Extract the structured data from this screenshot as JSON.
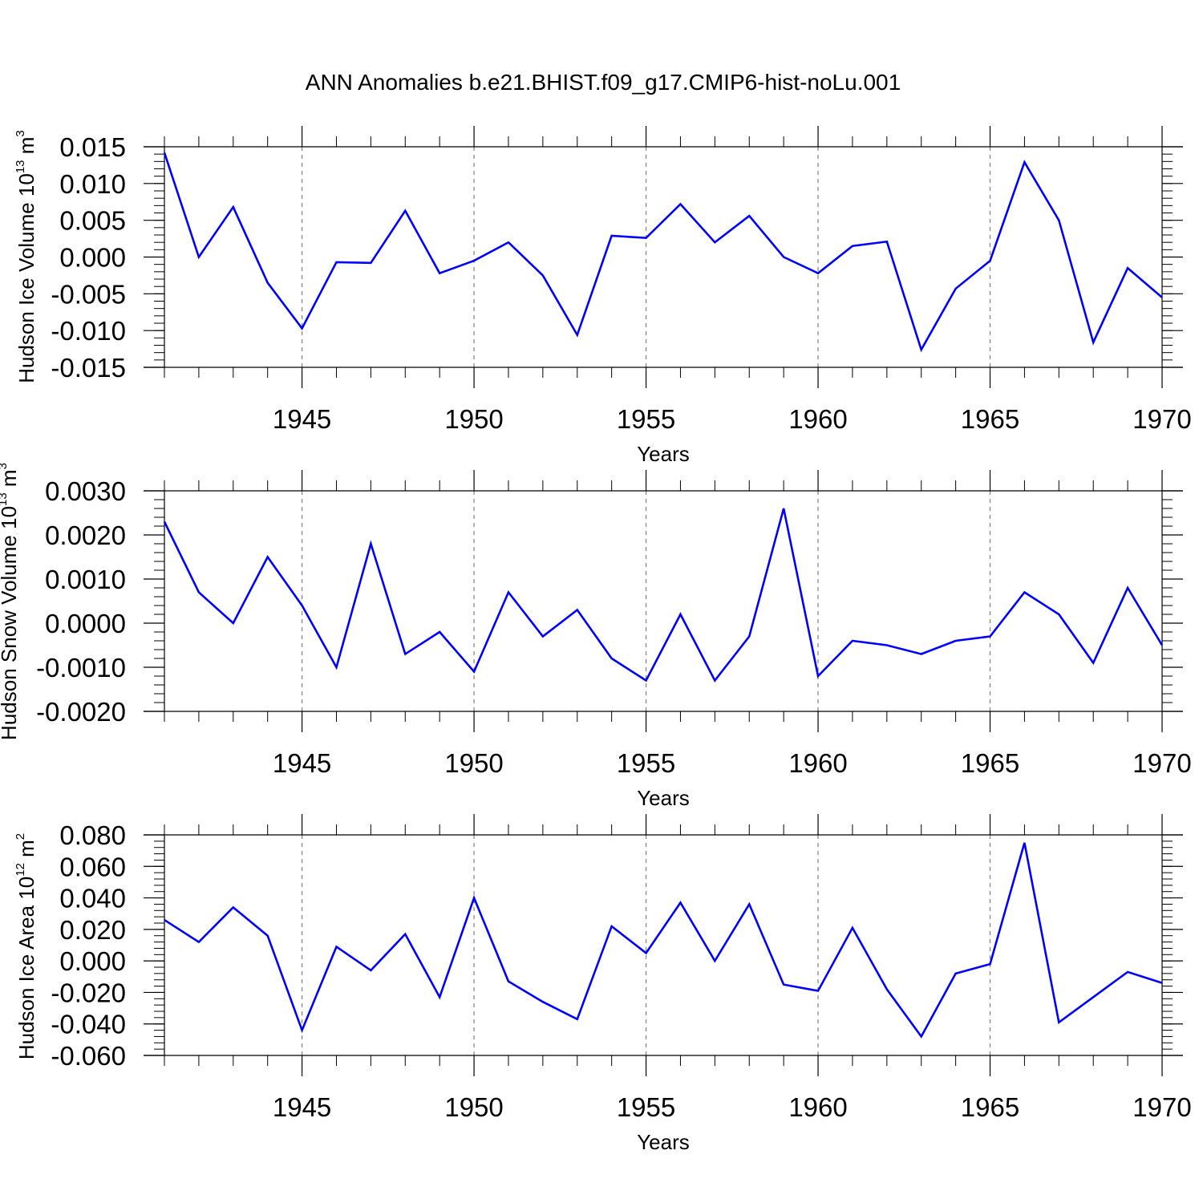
{
  "figure_title": "ANN Anomalies b.e21.BHIST.f09_g17.CMIP6-hist-noLu.001",
  "colors": {
    "series": "#0000ff",
    "axis": "#000000",
    "grid": "#7f7f7f",
    "background": "#ffffff"
  },
  "chart_data": [
    {
      "type": "line",
      "name": "ice-volume",
      "ylabel_main": "Hudson Ice Volume 10",
      "ylabel_exp": "13",
      "ylabel_unit": " m",
      "ylabel_unit_exp": "3",
      "xlabel": "Years",
      "xlim": [
        1941,
        1970
      ],
      "ylim": [
        -0.015,
        0.015
      ],
      "x_ticks": [
        1945,
        1950,
        1955,
        1960,
        1965,
        1970
      ],
      "y_ticks": [
        -0.015,
        -0.01,
        -0.005,
        0.0,
        0.005,
        0.01,
        0.015
      ],
      "y_tick_labels": [
        "-0.015",
        "-0.010",
        "-0.005",
        "0.000",
        "0.005",
        "0.010",
        "0.015"
      ],
      "y_minor_step": 0.001,
      "grid": "vertical dashed at major x ticks",
      "x": [
        1941,
        1942,
        1943,
        1944,
        1945,
        1946,
        1947,
        1948,
        1949,
        1950,
        1951,
        1952,
        1953,
        1954,
        1955,
        1956,
        1957,
        1958,
        1959,
        1960,
        1961,
        1962,
        1963,
        1964,
        1965,
        1966,
        1967,
        1968,
        1969,
        1970
      ],
      "values": [
        0.0142,
        0.0,
        0.0068,
        -0.0035,
        -0.0097,
        -0.0007,
        -0.0008,
        0.0063,
        -0.0022,
        -0.0005,
        0.002,
        -0.0025,
        -0.0106,
        0.0029,
        0.0026,
        0.0072,
        0.002,
        0.0056,
        0.0,
        -0.0022,
        0.0015,
        0.0021,
        -0.0126,
        -0.0043,
        -0.0005,
        0.0129,
        0.005,
        -0.0116,
        -0.0015,
        -0.0055
      ]
    },
    {
      "type": "line",
      "name": "snow-volume",
      "ylabel_main": "Hudson Snow Volume 10",
      "ylabel_exp": "13",
      "ylabel_unit": " m",
      "ylabel_unit_exp": "3",
      "xlabel": "Years",
      "xlim": [
        1941,
        1970
      ],
      "ylim": [
        -0.002,
        0.003
      ],
      "x_ticks": [
        1945,
        1950,
        1955,
        1960,
        1965,
        1970
      ],
      "y_ticks": [
        -0.002,
        -0.001,
        0.0,
        0.001,
        0.002,
        0.003
      ],
      "y_tick_labels": [
        "-0.0020",
        "-0.0010",
        "0.0000",
        "0.0010",
        "0.0020",
        "0.0030"
      ],
      "y_minor_step": 0.0002,
      "grid": "vertical dashed at major x ticks",
      "x": [
        1941,
        1942,
        1943,
        1944,
        1945,
        1946,
        1947,
        1948,
        1949,
        1950,
        1951,
        1952,
        1953,
        1954,
        1955,
        1956,
        1957,
        1958,
        1959,
        1960,
        1961,
        1962,
        1963,
        1964,
        1965,
        1966,
        1967,
        1968,
        1969,
        1970
      ],
      "values": [
        0.0023,
        0.0007,
        0.0,
        0.0015,
        0.0004,
        -0.001,
        0.0018,
        -0.0007,
        -0.0002,
        -0.0011,
        0.0007,
        -0.0003,
        0.0003,
        -0.0008,
        -0.0013,
        0.0002,
        -0.0013,
        -0.0003,
        0.0026,
        -0.0012,
        -0.0004,
        -0.0005,
        -0.0007,
        -0.0004,
        -0.0003,
        0.0007,
        0.0002,
        -0.0009,
        0.0008,
        -0.0005
      ]
    },
    {
      "type": "line",
      "name": "ice-area",
      "ylabel_main": "Hudson Ice Area 10",
      "ylabel_exp": "12",
      "ylabel_unit": " m",
      "ylabel_unit_exp": "2",
      "xlabel": "Years",
      "xlim": [
        1941,
        1970
      ],
      "ylim": [
        -0.06,
        0.08
      ],
      "x_ticks": [
        1945,
        1950,
        1955,
        1960,
        1965,
        1970
      ],
      "y_ticks": [
        -0.06,
        -0.04,
        -0.02,
        0.0,
        0.02,
        0.04,
        0.06,
        0.08
      ],
      "y_tick_labels": [
        "-0.060",
        "-0.040",
        "-0.020",
        "0.000",
        "0.020",
        "0.040",
        "0.060",
        "0.080"
      ],
      "y_minor_step": 0.004,
      "grid": "vertical dashed at major x ticks",
      "x": [
        1941,
        1942,
        1943,
        1944,
        1945,
        1946,
        1947,
        1948,
        1949,
        1950,
        1951,
        1952,
        1953,
        1954,
        1955,
        1956,
        1957,
        1958,
        1959,
        1960,
        1961,
        1962,
        1963,
        1964,
        1965,
        1966,
        1967,
        1968,
        1969,
        1970
      ],
      "values": [
        0.026,
        0.012,
        0.034,
        0.016,
        -0.044,
        0.009,
        -0.006,
        0.017,
        -0.023,
        0.04,
        -0.013,
        -0.026,
        -0.037,
        0.022,
        0.005,
        0.037,
        0.0,
        0.036,
        -0.015,
        -0.019,
        0.021,
        -0.018,
        -0.048,
        -0.008,
        -0.002,
        0.075,
        -0.039,
        -0.023,
        -0.007,
        -0.014
      ]
    }
  ]
}
